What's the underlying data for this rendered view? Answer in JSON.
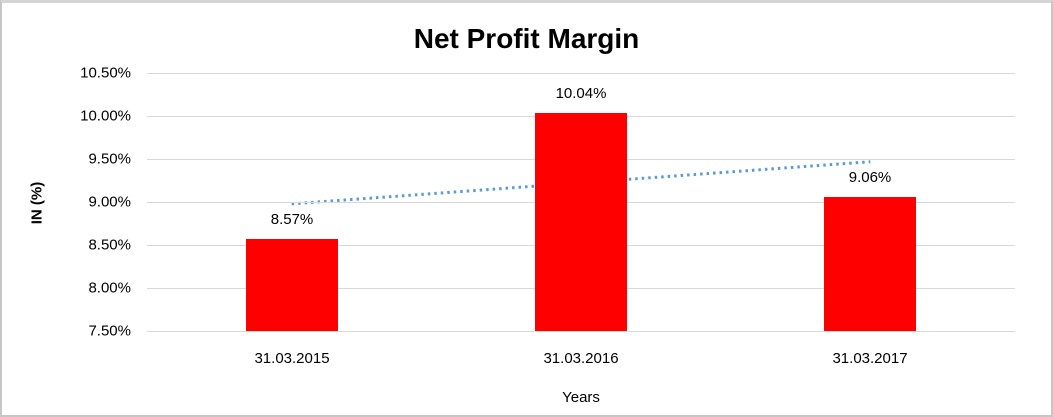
{
  "window": {
    "background_color": "#ffffff",
    "frame_border_color": "#c6c6c6"
  },
  "chart_data": {
    "type": "bar",
    "title": "Net Profit Margin",
    "categories": [
      "31.03.2015",
      "31.03.2016",
      "31.03.2017"
    ],
    "values": [
      8.57,
      10.04,
      9.06
    ],
    "data_labels": [
      "8.57%",
      "10.04%",
      "9.06%"
    ],
    "xlabel": "Years",
    "ylabel": "IN (%)",
    "ylim": [
      7.5,
      10.5
    ],
    "y_ticks": [
      "10.50%",
      "10.00%",
      "9.50%",
      "9.00%",
      "8.50%",
      "8.00%",
      "7.50%"
    ],
    "grid": true,
    "legend": false,
    "bar_color": "#ff0000",
    "gridline_color": "#d9d9d9",
    "trendline": {
      "type": "linear",
      "style": "dotted",
      "color": "#5b9bd5"
    }
  }
}
